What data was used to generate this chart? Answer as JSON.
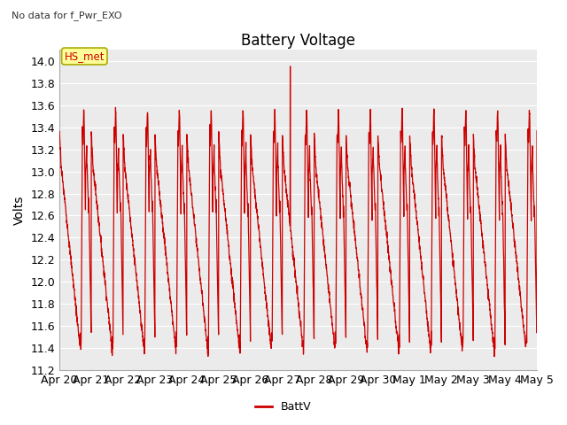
{
  "title": "Battery Voltage",
  "subtitle": "No data for f_Pwr_EXO",
  "ylabel": "Volts",
  "ylim": [
    11.2,
    14.1
  ],
  "yticks": [
    11.2,
    11.4,
    11.6,
    11.8,
    12.0,
    12.2,
    12.4,
    12.6,
    12.8,
    13.0,
    13.2,
    13.4,
    13.6,
    13.8,
    14.0
  ],
  "legend_label": "BattV",
  "line_color": "#cc0000",
  "legend_box_color": "#ffff99",
  "legend_box_edge": "#aaaa00",
  "annotation_label": "HS_met",
  "background_plot": "#ebebeb",
  "grid_color": "#ffffff",
  "title_fontsize": 12,
  "label_fontsize": 10,
  "tick_fontsize": 9,
  "date_labels": [
    "Apr 20",
    "Apr 21",
    "Apr 22",
    "Apr 23",
    "Apr 24",
    "Apr 25",
    "Apr 26",
    "Apr 27",
    "Apr 28",
    "Apr 29",
    "Apr 30",
    "May 1",
    "May 2",
    "May 3",
    "May 4",
    "May 5"
  ]
}
